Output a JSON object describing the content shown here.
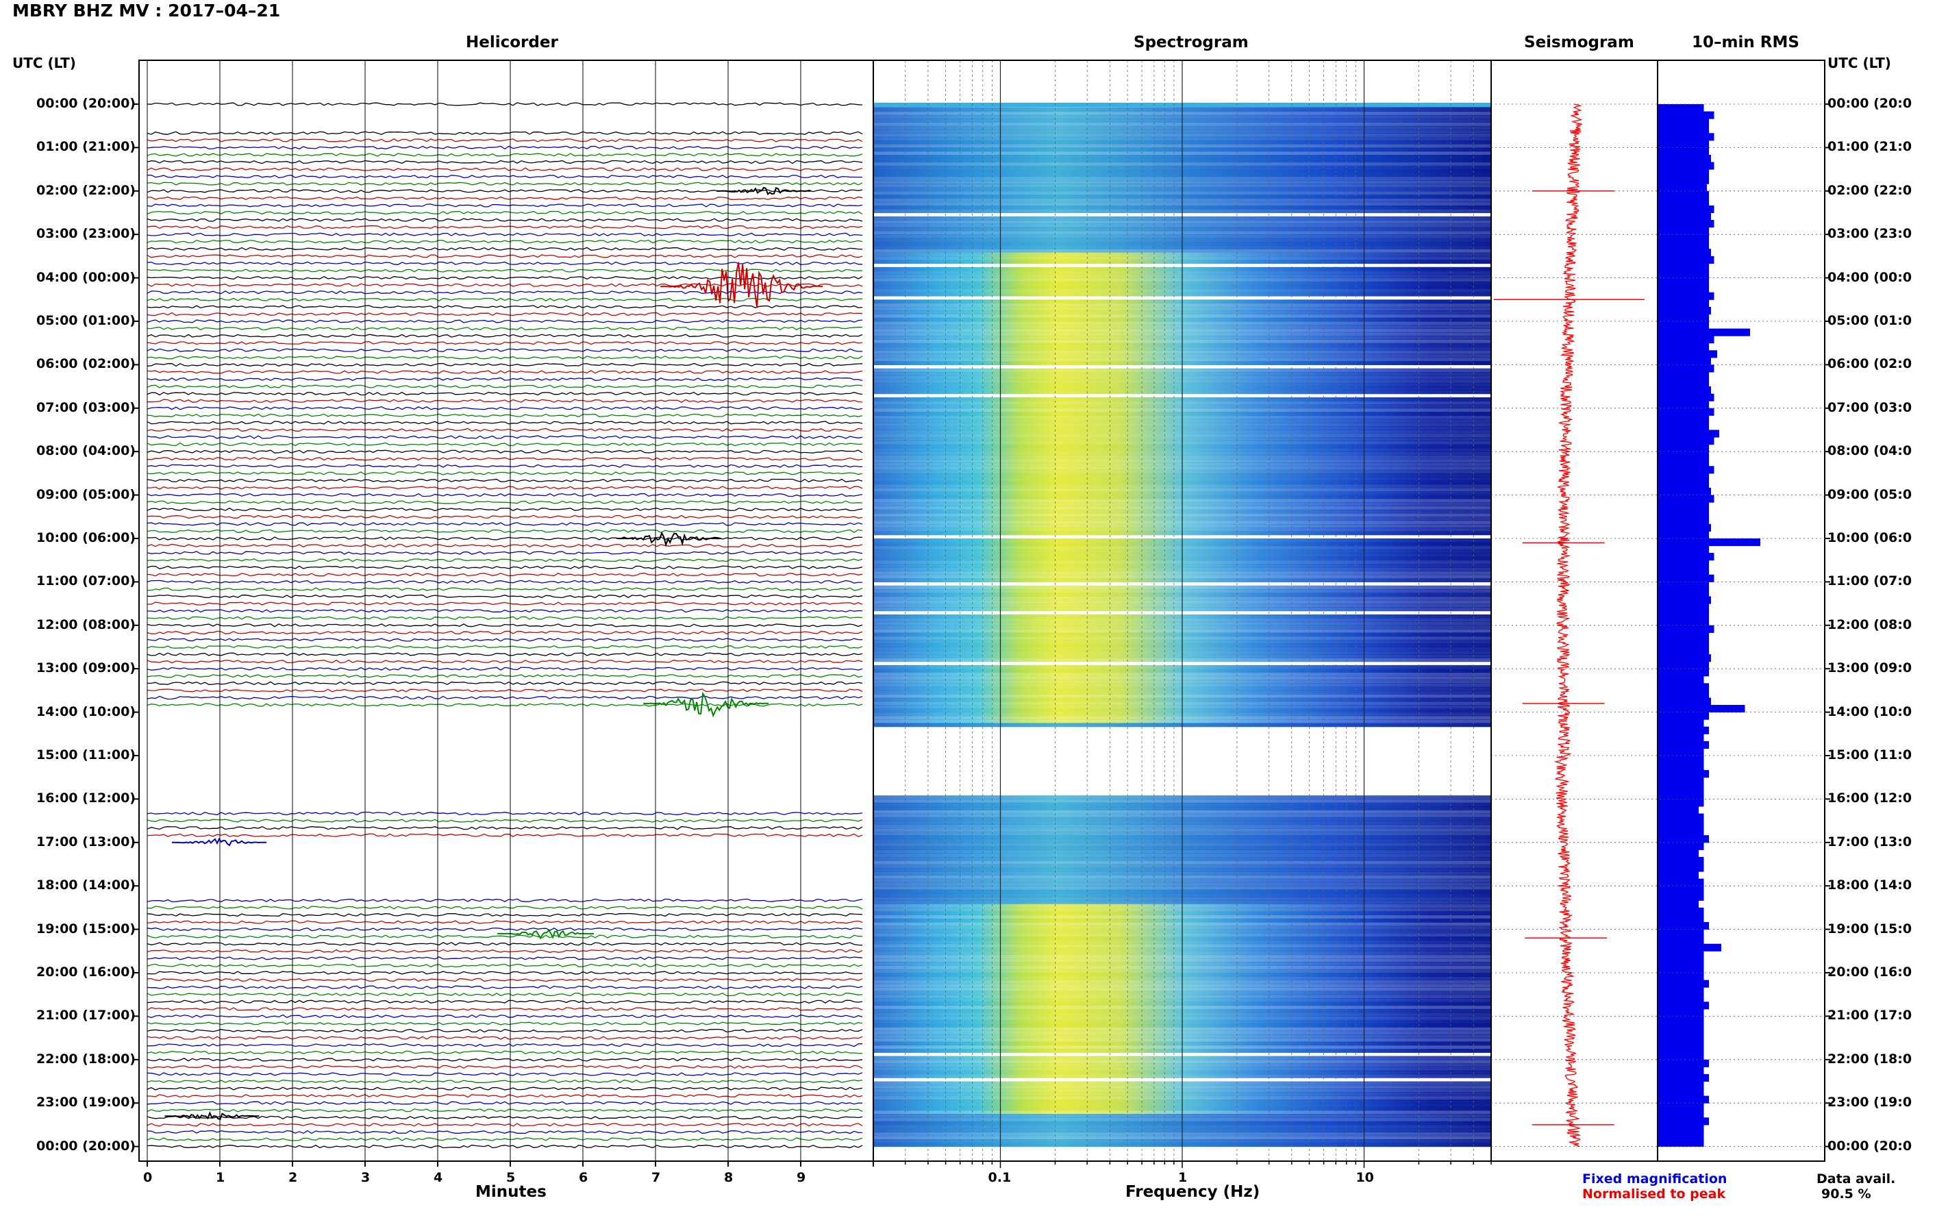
{
  "title": "MBRY BHZ MV : 2017–04–21",
  "colors": {
    "trace_cycle": [
      "#000000",
      "#cc0000",
      "#0000cc",
      "#008800"
    ],
    "seismogram": "#ff0000",
    "rms": "#0000ee"
  },
  "legend": {
    "fixed": "Fixed magnification",
    "peak": "Normalised to peak"
  },
  "data_avail": {
    "label": "Data avail.",
    "value": "90.5 %"
  },
  "chart_data": [
    {
      "type": "line",
      "panel": "helicorder",
      "title": "Helicorder",
      "left_axis_label": "UTC (LT)",
      "right_axis_label": "UTC (LT)",
      "time_labels": [
        "00:00 (20:00)",
        "01:00 (21:00)",
        "02:00 (22:00)",
        "03:00 (23:00)",
        "04:00 (00:00)",
        "05:00 (01:00)",
        "06:00 (02:00)",
        "07:00 (03:00)",
        "08:00 (04:00)",
        "09:00 (05:00)",
        "10:00 (06:00)",
        "11:00 (07:00)",
        "12:00 (08:00)",
        "13:00 (09:00)",
        "14:00 (10:00)",
        "15:00 (11:00)",
        "16:00 (12:00)",
        "17:00 (13:00)",
        "18:00 (14:00)",
        "19:00 (15:00)",
        "20:00 (16:00)",
        "21:00 (17:00)",
        "22:00 (18:00)",
        "23:00 (19:00)",
        "00:00 (20:00)"
      ],
      "right_time_labels": [
        "00:00 (20:0",
        "01:00 (21:0",
        "02:00 (22:0",
        "03:00 (23:0",
        "04:00 (00:0",
        "05:00 (01:0",
        "06:00 (02:0",
        "07:00 (03:0",
        "08:00 (04:0",
        "09:00 (05:0",
        "10:00 (06:0",
        "11:00 (07:0",
        "12:00 (08:0",
        "13:00 (09:0",
        "14:00 (10:0",
        "15:00 (11:0",
        "16:00 (12:0",
        "17:00 (13:0",
        "18:00 (14:0",
        "19:00 (15:0",
        "20:00 (16:0",
        "21:00 (17:0",
        "22:00 (18:0",
        "23:00 (19:0",
        "00:00 (20:0"
      ],
      "xlabel": "Minutes",
      "xticks": [
        "0",
        "1",
        "2",
        "3",
        "4",
        "5",
        "6",
        "7",
        "8",
        "9"
      ],
      "xlim": [
        0,
        10
      ],
      "lines_per_hour": 6,
      "events": [
        {
          "hour": 2,
          "minute": 8.5,
          "amp": 0.5
        },
        {
          "hour": 4.2,
          "minute": 8.2,
          "amp": 3.0
        },
        {
          "hour": 10.0,
          "minute": 7.2,
          "amp": 0.9
        },
        {
          "hour": 13.8,
          "minute": 7.7,
          "amp": 1.6
        },
        {
          "hour": 17.0,
          "minute": 1.0,
          "amp": 0.5
        },
        {
          "hour": 19.1,
          "minute": 5.5,
          "amp": 0.6
        },
        {
          "hour": 23.3,
          "minute": 0.9,
          "amp": 0.5
        }
      ],
      "gap_hours": [
        [
          0.1,
          0.6
        ],
        [
          14.0,
          16.2
        ],
        [
          17.0,
          18.3
        ]
      ]
    },
    {
      "type": "heatmap",
      "panel": "spectrogram",
      "title": "Spectrogram",
      "xlabel": "Frequency (Hz)",
      "xscale": "log",
      "xticks": [
        "0.1",
        "1",
        "10"
      ],
      "xlim": [
        0.02,
        50
      ],
      "colormap": "jet-like: dark blue low, cyan, yellow peak near 0.2-0.5 Hz",
      "blank_hours": [
        [
          14.3,
          15.8
        ]
      ]
    },
    {
      "type": "line",
      "panel": "seismogram",
      "title": "Seismogram",
      "spikes_at_hours": [
        2.0,
        4.5,
        10.1,
        13.8,
        19.2,
        23.5
      ]
    },
    {
      "type": "bar",
      "panel": "rms",
      "title": "10–min RMS",
      "orientation": "horizontal",
      "bins_per_hour": 6,
      "relative_values": [
        0.45,
        0.55,
        0.5,
        0.5,
        0.55,
        0.5,
        0.5,
        0.52,
        0.55,
        0.5,
        0.5,
        0.48,
        0.5,
        0.5,
        0.55,
        0.52,
        0.55,
        0.5,
        0.5,
        0.5,
        0.52,
        0.55,
        0.5,
        0.5,
        0.5,
        0.5,
        0.55,
        0.5,
        0.52,
        0.5,
        0.5,
        0.9,
        0.55,
        0.5,
        0.58,
        0.52,
        0.55,
        0.5,
        0.5,
        0.52,
        0.55,
        0.5,
        0.55,
        0.5,
        0.5,
        0.6,
        0.55,
        0.5,
        0.5,
        0.5,
        0.55,
        0.5,
        0.5,
        0.52,
        0.55,
        0.5,
        0.5,
        0.5,
        0.52,
        0.5,
        1.0,
        0.5,
        0.55,
        0.5,
        0.5,
        0.55,
        0.5,
        0.5,
        0.52,
        0.5,
        0.5,
        0.5,
        0.55,
        0.5,
        0.5,
        0.5,
        0.52,
        0.5,
        0.5,
        0.45,
        0.5,
        0.5,
        0.52,
        0.85,
        0.5,
        0.45,
        0.5,
        0.45,
        0.5,
        0.45,
        0.45,
        0.45,
        0.5,
        0.45,
        0.45,
        0.45,
        0.45,
        0.4,
        0.45,
        0.45,
        0.45,
        0.5,
        0.45,
        0.4,
        0.45,
        0.45,
        0.4,
        0.45,
        0.45,
        0.45,
        0.4,
        0.45,
        0.45,
        0.5,
        0.45,
        0.45,
        0.62,
        0.45,
        0.45,
        0.45,
        0.45,
        0.5,
        0.45,
        0.45,
        0.5,
        0.45,
        0.45,
        0.45,
        0.45,
        0.45,
        0.45,
        0.45,
        0.5,
        0.45,
        0.5,
        0.45,
        0.45,
        0.5,
        0.45,
        0.45,
        0.5,
        0.45,
        0.45,
        0.45
      ]
    }
  ]
}
